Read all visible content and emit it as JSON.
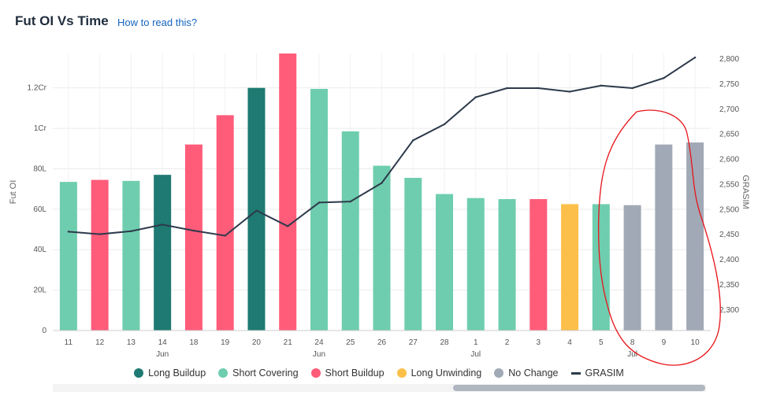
{
  "header": {
    "title": "Fut OI Vs Time",
    "help_link": "How to read this?"
  },
  "chart_data": {
    "type": "bar",
    "categories": [
      "11",
      "12",
      "13",
      "14",
      "18",
      "19",
      "20",
      "21",
      "24",
      "25",
      "26",
      "27",
      "28",
      "1",
      "2",
      "3",
      "4",
      "5",
      "8",
      "9",
      "10"
    ],
    "month_labels": [
      {
        "label": "Jun",
        "at_index": 3
      },
      {
        "label": "Jun",
        "at_index": 8
      },
      {
        "label": "Jul",
        "at_index": 13
      },
      {
        "label": "Jul",
        "at_index": 18
      }
    ],
    "bars": {
      "name": "Fut OI",
      "values": [
        73.5,
        74.5,
        74,
        77,
        92,
        106.5,
        120,
        137,
        119.5,
        98.5,
        81.5,
        75.5,
        67.5,
        65.5,
        65,
        65,
        62.5,
        62.5,
        62,
        92,
        93
      ],
      "states": [
        "Short Covering",
        "Short Buildup",
        "Short Covering",
        "Long Buildup",
        "Short Buildup",
        "Short Buildup",
        "Long Buildup",
        "Short Buildup",
        "Short Covering",
        "Short Covering",
        "Short Covering",
        "Short Covering",
        "Short Covering",
        "Short Covering",
        "Short Covering",
        "Short Buildup",
        "Long Unwinding",
        "Short Covering",
        "No Change",
        "No Change",
        "No Change"
      ]
    },
    "line": {
      "name": "GRASIM",
      "values": [
        2456,
        2451,
        2457,
        2470,
        2458,
        2448,
        2498,
        2467,
        2514,
        2516,
        2553,
        2638,
        2670,
        2724,
        2742,
        2742,
        2735,
        2747,
        2742,
        2762,
        2803
      ]
    },
    "y_left": {
      "label": "Fut OI",
      "range": [
        0,
        137
      ],
      "ticks": [
        {
          "value": 0,
          "label": "0"
        },
        {
          "value": 20,
          "label": "20L"
        },
        {
          "value": 40,
          "label": "40L"
        },
        {
          "value": 60,
          "label": "60L"
        },
        {
          "value": 80,
          "label": "80L"
        },
        {
          "value": 100,
          "label": "1Cr"
        },
        {
          "value": 120,
          "label": "1.2Cr"
        }
      ]
    },
    "y_right": {
      "label": "GRASIM",
      "range": [
        2259,
        2811
      ],
      "ticks": [
        2300,
        2350,
        2400,
        2450,
        2500,
        2550,
        2600,
        2650,
        2700,
        2750,
        2800
      ],
      "tick_labels": [
        "2,300",
        "2,350",
        "2,400",
        "2,450",
        "2,500",
        "2,550",
        "2,600",
        "2,650",
        "2,700",
        "2,750",
        "2,800"
      ]
    },
    "legend": [
      {
        "name": "Long Buildup",
        "color": "#1e7a72",
        "kind": "dot"
      },
      {
        "name": "Short Covering",
        "color": "#6ecdae",
        "kind": "dot"
      },
      {
        "name": "Short Buildup",
        "color": "#ff5c7a",
        "kind": "dot"
      },
      {
        "name": "Long Unwinding",
        "color": "#fcbf49",
        "kind": "dot"
      },
      {
        "name": "No Change",
        "color": "#a1a9b6",
        "kind": "dot"
      },
      {
        "name": "GRASIM",
        "color": "#2d3a4b",
        "kind": "line"
      }
    ],
    "legend_position": "bottom",
    "grid": true,
    "annotation_color": "#e8141a"
  }
}
